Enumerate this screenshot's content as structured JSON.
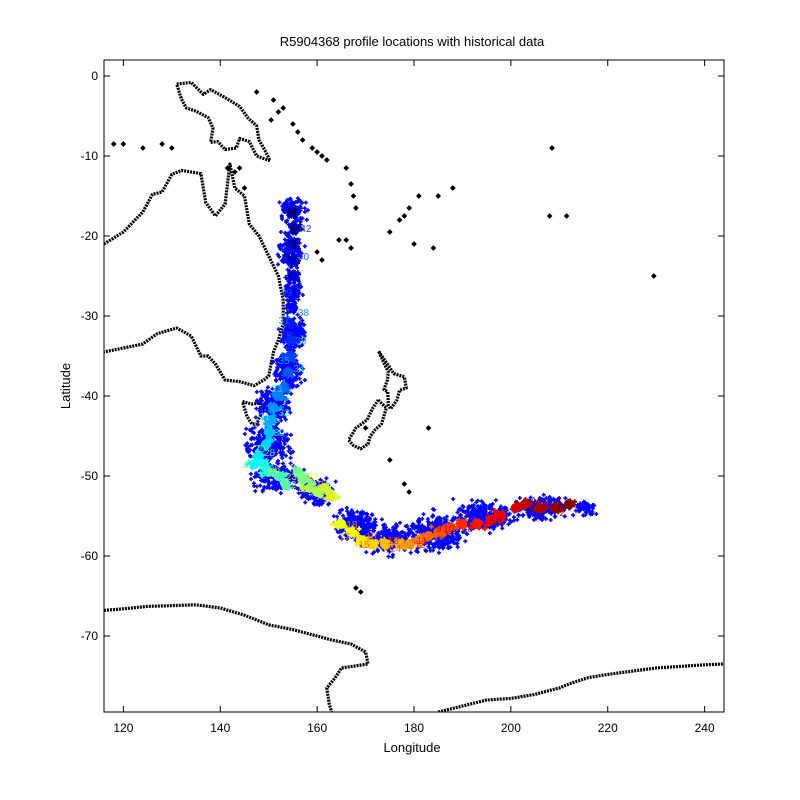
{
  "chart_data": {
    "type": "scatter",
    "title": "R5904368 profile locations with historical data",
    "xlabel": "Longitude",
    "ylabel": "Latitude",
    "xlim": [
      116,
      244
    ],
    "ylim": [
      -79.5,
      2
    ],
    "xticks": [
      120,
      140,
      160,
      180,
      200,
      220,
      240
    ],
    "yticks": [
      0,
      -10,
      -20,
      -30,
      -40,
      -50,
      -60,
      -70
    ],
    "grid": false,
    "legend": "none",
    "colors": {
      "coastline": "#000000",
      "historical": "#0000ff",
      "track_start": "#00008b",
      "track_end": "#8b0000"
    },
    "coastlines": [
      {
        "name": "Australia east coast",
        "points": [
          [
            116,
            -21
          ],
          [
            120,
            -19.5
          ],
          [
            124,
            -17
          ],
          [
            126,
            -14.8
          ],
          [
            128,
            -14.5
          ],
          [
            130,
            -12.3
          ],
          [
            132,
            -11.8
          ],
          [
            134,
            -12
          ],
          [
            136,
            -12.2
          ],
          [
            137,
            -15.8
          ],
          [
            139,
            -17.5
          ],
          [
            141,
            -16
          ],
          [
            142,
            -11
          ],
          [
            143,
            -14
          ],
          [
            145,
            -15
          ],
          [
            146,
            -18.5
          ],
          [
            148,
            -20
          ],
          [
            150,
            -22.5
          ],
          [
            152,
            -25
          ],
          [
            153,
            -28
          ],
          [
            153,
            -31
          ],
          [
            152,
            -33
          ],
          [
            151,
            -34.5
          ],
          [
            150,
            -37.5
          ],
          [
            149,
            -38
          ],
          [
            147,
            -38.7
          ],
          [
            144,
            -38.2
          ],
          [
            141,
            -38
          ],
          [
            139,
            -36
          ],
          [
            137.5,
            -35
          ],
          [
            136,
            -35
          ],
          [
            134,
            -32.5
          ],
          [
            131,
            -31.5
          ],
          [
            127,
            -32.2
          ],
          [
            124,
            -33.5
          ],
          [
            120,
            -34
          ],
          [
            116,
            -34.5
          ]
        ]
      },
      {
        "name": "Tasmania",
        "points": [
          [
            144.6,
            -40.7
          ],
          [
            146.5,
            -41
          ],
          [
            148.3,
            -40.9
          ],
          [
            148.3,
            -42.5
          ],
          [
            147.5,
            -43.5
          ],
          [
            146.5,
            -43.5
          ],
          [
            145.5,
            -42.5
          ],
          [
            144.6,
            -40.7
          ]
        ]
      },
      {
        "name": "New Zealand South Island",
        "points": [
          [
            172.6,
            -40.5
          ],
          [
            174.3,
            -41.5
          ],
          [
            173.3,
            -43.5
          ],
          [
            172,
            -44.2
          ],
          [
            171,
            -45
          ],
          [
            170.5,
            -46
          ],
          [
            169,
            -46.6
          ],
          [
            167.5,
            -46.2
          ],
          [
            166.5,
            -45.5
          ],
          [
            168,
            -44
          ],
          [
            170.3,
            -43
          ],
          [
            171.5,
            -41.5
          ],
          [
            172.6,
            -40.5
          ]
        ]
      },
      {
        "name": "New Zealand North Island",
        "points": [
          [
            172.7,
            -34.4
          ],
          [
            174.5,
            -36
          ],
          [
            175.8,
            -37.2
          ],
          [
            178,
            -37.6
          ],
          [
            178.4,
            -39
          ],
          [
            177,
            -39.3
          ],
          [
            176.5,
            -40.5
          ],
          [
            175.2,
            -41.6
          ],
          [
            174.7,
            -41.2
          ],
          [
            174.6,
            -39.5
          ],
          [
            173.8,
            -39.2
          ],
          [
            174.5,
            -38
          ],
          [
            174.7,
            -37
          ],
          [
            173.5,
            -35.5
          ],
          [
            172.7,
            -34.4
          ]
        ]
      },
      {
        "name": "New Guinea",
        "points": [
          [
            131,
            -1
          ],
          [
            134,
            -0.8
          ],
          [
            136.5,
            -2.3
          ],
          [
            138,
            -1.7
          ],
          [
            141,
            -2.7
          ],
          [
            144,
            -3.8
          ],
          [
            145.8,
            -5.3
          ],
          [
            147.5,
            -6.2
          ],
          [
            148,
            -8
          ],
          [
            149.5,
            -9.6
          ],
          [
            150.3,
            -10.6
          ],
          [
            147.5,
            -10
          ],
          [
            146,
            -8.2
          ],
          [
            144,
            -7.8
          ],
          [
            143.3,
            -9
          ],
          [
            141,
            -9.2
          ],
          [
            139.5,
            -8.2
          ],
          [
            138,
            -8.3
          ],
          [
            138.5,
            -6.5
          ],
          [
            137.5,
            -5.2
          ],
          [
            135,
            -4.4
          ],
          [
            133,
            -4
          ],
          [
            132,
            -2.9
          ],
          [
            131,
            -1
          ]
        ]
      },
      {
        "name": "Antarctica Ross Sea coast",
        "points": [
          [
            116,
            -66.8
          ],
          [
            120,
            -66.6
          ],
          [
            125,
            -66.3
          ],
          [
            130,
            -66.2
          ],
          [
            135,
            -66.1
          ],
          [
            140,
            -66.5
          ],
          [
            145,
            -67.4
          ],
          [
            150,
            -68.6
          ],
          [
            155,
            -69.2
          ],
          [
            160,
            -70
          ],
          [
            163,
            -70.5
          ],
          [
            167,
            -71
          ],
          [
            170,
            -72
          ],
          [
            170.5,
            -73.5
          ],
          [
            165,
            -74
          ],
          [
            164,
            -75
          ],
          [
            162,
            -76.5
          ],
          [
            162.5,
            -78.5
          ],
          [
            163,
            -79.5
          ]
        ]
      },
      {
        "name": "Antarctica Marie Byrd coast",
        "points": [
          [
            185,
            -79.5
          ],
          [
            195,
            -78
          ],
          [
            200,
            -77.8
          ],
          [
            205,
            -77.3
          ],
          [
            208,
            -76.8
          ],
          [
            210,
            -76.5
          ],
          [
            212,
            -76
          ],
          [
            216,
            -75.2
          ],
          [
            220,
            -74.8
          ],
          [
            225,
            -74.4
          ],
          [
            230,
            -74
          ],
          [
            235,
            -73.8
          ],
          [
            240,
            -73.6
          ],
          [
            244,
            -73.5
          ]
        ]
      }
    ],
    "islands": [
      [
        152,
        -4.5
      ],
      [
        153,
        -4
      ],
      [
        150.5,
        -5.5
      ],
      [
        155,
        -6
      ],
      [
        156,
        -7
      ],
      [
        157,
        -8
      ],
      [
        159,
        -9
      ],
      [
        160,
        -9.5
      ],
      [
        161,
        -10
      ],
      [
        162,
        -10.5
      ],
      [
        166,
        -11.5
      ],
      [
        167,
        -13.5
      ],
      [
        167.5,
        -15
      ],
      [
        168,
        -16.5
      ],
      [
        166,
        -20.5
      ],
      [
        167,
        -21.5
      ],
      [
        164.5,
        -20.5
      ],
      [
        178,
        -17.5
      ],
      [
        177,
        -18
      ],
      [
        179,
        -16.5
      ],
      [
        181,
        -15
      ],
      [
        185,
        -15
      ],
      [
        188,
        -14
      ],
      [
        180,
        -21
      ],
      [
        184,
        -21.5
      ],
      [
        175,
        -19.5
      ],
      [
        211.5,
        -17.5
      ],
      [
        208,
        -17.5
      ],
      [
        229.5,
        -25
      ],
      [
        170,
        -44
      ],
      [
        175,
        -48
      ],
      [
        179,
        -52
      ],
      [
        178,
        -51
      ],
      [
        183,
        -44
      ],
      [
        208.5,
        -9
      ],
      [
        147.5,
        -2
      ],
      [
        151,
        -3
      ],
      [
        168,
        -64
      ],
      [
        169,
        -64.5
      ],
      [
        143,
        -12
      ],
      [
        144,
        -11.5
      ],
      [
        145,
        -14
      ],
      [
        141.5,
        -11.5
      ],
      [
        130,
        -9
      ],
      [
        128,
        -8.5
      ],
      [
        124,
        -9
      ],
      [
        120,
        -8.5
      ],
      [
        118,
        -8.5
      ],
      [
        155,
        -23
      ],
      [
        160,
        -22
      ],
      [
        161,
        -23
      ]
    ],
    "historical_cloud": [
      {
        "center": [
          155,
          -17
        ],
        "size": [
          4,
          3
        ]
      },
      {
        "center": [
          154.5,
          -22
        ],
        "size": [
          4,
          4
        ]
      },
      {
        "center": [
          155,
          -27
        ],
        "size": [
          3,
          4
        ]
      },
      {
        "center": [
          155,
          -32
        ],
        "size": [
          4,
          4
        ]
      },
      {
        "center": [
          154,
          -37
        ],
        "size": [
          5,
          4
        ]
      },
      {
        "center": [
          151,
          -41
        ],
        "size": [
          6,
          4
        ]
      },
      {
        "center": [
          150,
          -46
        ],
        "size": [
          8,
          4
        ]
      },
      {
        "center": [
          152,
          -50
        ],
        "size": [
          9,
          3
        ]
      },
      {
        "center": [
          160,
          -52
        ],
        "size": [
          6,
          3
        ]
      },
      {
        "center": [
          168,
          -56
        ],
        "size": [
          8,
          3
        ]
      },
      {
        "center": [
          175,
          -58
        ],
        "size": [
          9,
          3
        ]
      },
      {
        "center": [
          185,
          -57
        ],
        "size": [
          9,
          4
        ]
      },
      {
        "center": [
          195,
          -55
        ],
        "size": [
          10,
          3
        ]
      },
      {
        "center": [
          206,
          -54
        ],
        "size": [
          10,
          2.5
        ]
      },
      {
        "center": [
          215,
          -54
        ],
        "size": [
          4,
          1.5
        ]
      }
    ],
    "track": [
      [
        155,
        -17
      ],
      [
        155.5,
        -19
      ],
      [
        155,
        -21
      ],
      [
        155,
        -23
      ],
      [
        155,
        -25
      ],
      [
        155,
        -27
      ],
      [
        155,
        -29
      ],
      [
        154.5,
        -31
      ],
      [
        154.5,
        -33
      ],
      [
        154.5,
        -35
      ],
      [
        154,
        -37
      ],
      [
        153,
        -39
      ],
      [
        152,
        -40
      ],
      [
        151,
        -41.5
      ],
      [
        150.5,
        -43
      ],
      [
        150,
        -44.5
      ],
      [
        149.5,
        -46
      ],
      [
        148,
        -47.5
      ],
      [
        147,
        -48.5
      ],
      [
        149,
        -48.5
      ],
      [
        150,
        -49.5
      ],
      [
        152,
        -50
      ],
      [
        153.5,
        -51
      ],
      [
        156,
        -49.5
      ],
      [
        157,
        -50.5
      ],
      [
        158.5,
        -51.5
      ],
      [
        160,
        -52
      ],
      [
        161.5,
        -51.5
      ],
      [
        163,
        -52.5
      ],
      [
        165,
        -56
      ],
      [
        167,
        -57
      ],
      [
        169,
        -58
      ],
      [
        171,
        -58.5
      ],
      [
        174,
        -58.5
      ],
      [
        177,
        -58.5
      ],
      [
        179,
        -58.5
      ],
      [
        181,
        -58
      ],
      [
        183,
        -57.5
      ],
      [
        185,
        -57
      ],
      [
        187,
        -56.5
      ],
      [
        190,
        -56
      ],
      [
        193,
        -56
      ],
      [
        196,
        -55.5
      ],
      [
        198,
        -55
      ],
      [
        201,
        -54
      ],
      [
        203,
        -53.5
      ],
      [
        206,
        -54
      ],
      [
        209,
        -54
      ],
      [
        212,
        -53.5
      ]
    ],
    "track_labels": [
      "43",
      "42",
      "41",
      "40",
      "39",
      "38",
      "37",
      "36",
      "35",
      "34",
      "33",
      "32",
      "31",
      "30",
      "29",
      "28",
      "27",
      "26",
      "25",
      "24",
      "23",
      "22",
      "21",
      "20",
      "19",
      "18",
      "17",
      "16",
      "15",
      "14",
      "13",
      "12",
      "11",
      "10",
      "9",
      "8",
      "7",
      "6",
      "5",
      "4",
      "3",
      "2",
      "1"
    ]
  }
}
